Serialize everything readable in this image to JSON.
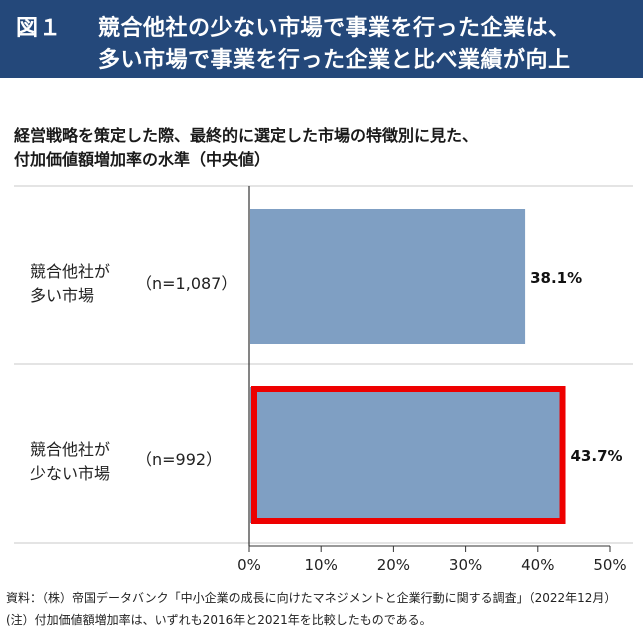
{
  "header": {
    "fig_label": "図１",
    "title_line1": "競合他社の少ない市場で事業を行った企業は、",
    "title_line2": "多い市場で事業を行った企業と比べ業績が向上"
  },
  "chart_data": {
    "type": "bar",
    "orientation": "horizontal",
    "title_line1": "経営戦略を策定した際、最終的に選定した市場の特徴別に見た、",
    "title_line2": "付加価値額増加率の水準（中央値）",
    "categories": [
      {
        "label_line1": "競合他社が",
        "label_line2": "多い市場",
        "n": "（n=1,087）"
      },
      {
        "label_line1": "競合他社が",
        "label_line2": "少ない市場",
        "n": "（n=992）"
      }
    ],
    "values": [
      38.1,
      43.7
    ],
    "value_labels": [
      "38.1%",
      "43.7%"
    ],
    "highlighted_index": 1,
    "xlim": [
      0,
      50
    ],
    "x_ticks": [
      "0%",
      "10%",
      "20%",
      "30%",
      "40%",
      "50%"
    ],
    "grid": false,
    "colors": {
      "bar": "#7f9fc3",
      "highlight_border": "#ee0000",
      "header_bg": "#24487a"
    }
  },
  "footer": {
    "source": "資料：（株）帝国データバンク「中小企業の成長に向けたマネジメントと企業行動に関する調査」（2022年12月）",
    "note": "(注）付加価値額増加率は、いずれも2016年と2021年を比較したものである。"
  }
}
